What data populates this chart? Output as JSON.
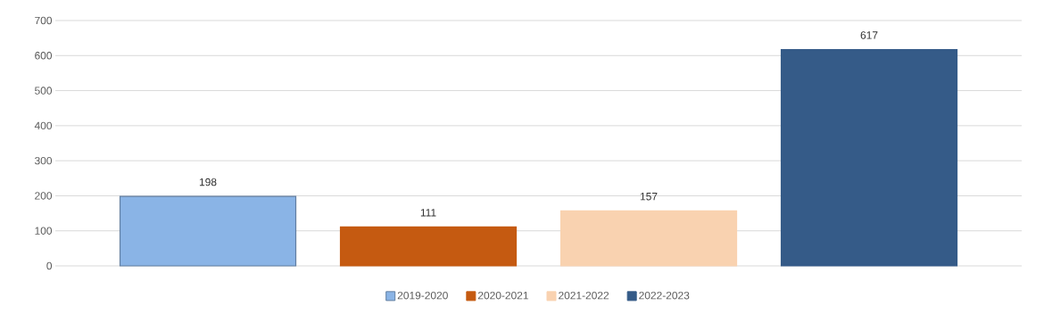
{
  "chart_data": {
    "type": "bar",
    "categories": [
      null
    ],
    "series": [
      {
        "name": "2019-2020",
        "color": "#8ab4e6",
        "values": [
          198
        ]
      },
      {
        "name": "2020-2021",
        "color": "#c55a11",
        "values": [
          111
        ]
      },
      {
        "name": "2021-2022",
        "color": "#f9d2b0",
        "values": [
          157
        ]
      },
      {
        "name": "2022-2023",
        "color": "#355b88",
        "values": [
          617
        ]
      }
    ],
    "ylim": [
      0,
      700
    ],
    "yticks": [
      0,
      100,
      200,
      300,
      400,
      500,
      600,
      700
    ],
    "grid": "y",
    "legend": "bottom",
    "data_labels": true,
    "tick_labels": "y"
  }
}
